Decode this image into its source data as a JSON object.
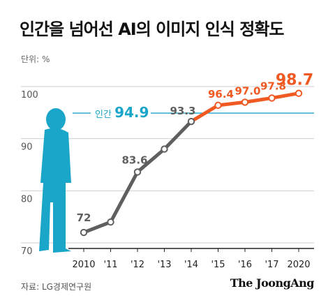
{
  "title": "인간을 넘어선 AI의 이미지 인식 정확도",
  "unit_label": "단위: %",
  "source": "자료: LG경제연구원",
  "brand": "The JoongAng",
  "colors": {
    "history": "#5f5f5f",
    "forecast": "#f05a22",
    "human": "#1aa6c9",
    "grid": "#cfcfcf",
    "axis": "#222222"
  },
  "chart_data": {
    "type": "line",
    "categories": [
      "2010",
      "'11",
      "'12",
      "'13",
      "'14",
      "'15",
      "'16",
      "'17",
      "2020"
    ],
    "series": [
      {
        "values": [
          72,
          74,
          83.6,
          88,
          93.3,
          96.4,
          97.0,
          97.8,
          98.7
        ]
      }
    ],
    "data_labels": [
      {
        "index": 0,
        "text": "72",
        "style": "history"
      },
      {
        "index": 2,
        "text": "83.6",
        "style": "history"
      },
      {
        "index": 4,
        "text": "93.3",
        "style": "history"
      },
      {
        "index": 5,
        "text": "96.4",
        "style": "forecast"
      },
      {
        "index": 6,
        "text": "97.0",
        "style": "forecast"
      },
      {
        "index": 7,
        "text": "97.8",
        "style": "forecast"
      },
      {
        "index": 8,
        "text": "98.7",
        "style": "forecast-big"
      }
    ],
    "forecast_from_index": 4,
    "reference_line": {
      "value": 94.9,
      "label": "인간",
      "value_text": "94.9"
    },
    "yticks": [
      70,
      80,
      90,
      100
    ],
    "ylim": [
      70,
      100
    ],
    "grid": true,
    "icons": [
      "human-silhouette-icon"
    ]
  }
}
